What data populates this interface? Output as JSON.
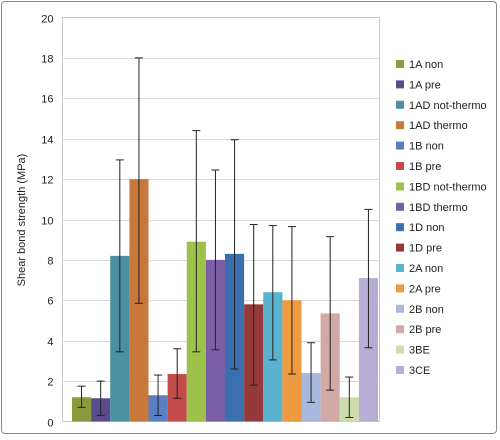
{
  "chart_data": {
    "type": "bar",
    "ylabel": "Shear bond strength (MPa)",
    "ylim": [
      0,
      20
    ],
    "yticks": [
      0,
      2,
      4,
      6,
      8,
      10,
      12,
      14,
      16,
      18,
      20
    ],
    "grid": true,
    "error_bars": true,
    "legend_position": "right",
    "series": [
      {
        "name": "1A non",
        "value": 1.2,
        "err_low": 0.7,
        "err_high": 1.75,
        "color": "#8a9a3c"
      },
      {
        "name": "1A pre",
        "value": 1.15,
        "err_low": 0.3,
        "err_high": 2.0,
        "color": "#5b4a8c"
      },
      {
        "name": "1AD not-thermo",
        "value": 8.2,
        "err_low": 3.45,
        "err_high": 12.95,
        "color": "#4b8fa3"
      },
      {
        "name": "1AD thermo",
        "value": 12.0,
        "err_low": 5.85,
        "err_high": 18.0,
        "color": "#c8783a"
      },
      {
        "name": "1B non",
        "value": 1.3,
        "err_low": 0.3,
        "err_high": 2.3,
        "color": "#5a7fc4"
      },
      {
        "name": "1B pre",
        "value": 2.35,
        "err_low": 1.15,
        "err_high": 3.6,
        "color": "#c24a48"
      },
      {
        "name": "1BD not-thermo",
        "value": 8.9,
        "err_low": 3.45,
        "err_high": 14.4,
        "color": "#9dc249"
      },
      {
        "name": "1BD thermo",
        "value": 8.0,
        "err_low": 3.55,
        "err_high": 12.45,
        "color": "#7b5fa6"
      },
      {
        "name": "1D non",
        "value": 8.3,
        "err_low": 2.6,
        "err_high": 13.95,
        "color": "#3a6fb0"
      },
      {
        "name": "1D pre",
        "value": 5.8,
        "err_low": 1.8,
        "err_high": 9.75,
        "color": "#953a3c"
      },
      {
        "name": "2A non",
        "value": 6.4,
        "err_low": 3.05,
        "err_high": 9.7,
        "color": "#5ab2cf"
      },
      {
        "name": "2A pre",
        "value": 6.0,
        "err_low": 2.35,
        "err_high": 9.65,
        "color": "#ee9a40"
      },
      {
        "name": "2B non",
        "value": 2.4,
        "err_low": 0.95,
        "err_high": 3.9,
        "color": "#a9b9dd"
      },
      {
        "name": "2B pre",
        "value": 5.35,
        "err_low": 1.55,
        "err_high": 9.15,
        "color": "#d3a9a6"
      },
      {
        "name": "3BE",
        "value": 1.2,
        "err_low": 0.2,
        "err_high": 2.2,
        "color": "#cddcad"
      },
      {
        "name": "3CE",
        "value": 7.1,
        "err_low": 3.65,
        "err_high": 10.5,
        "color": "#b8aed5"
      }
    ]
  }
}
